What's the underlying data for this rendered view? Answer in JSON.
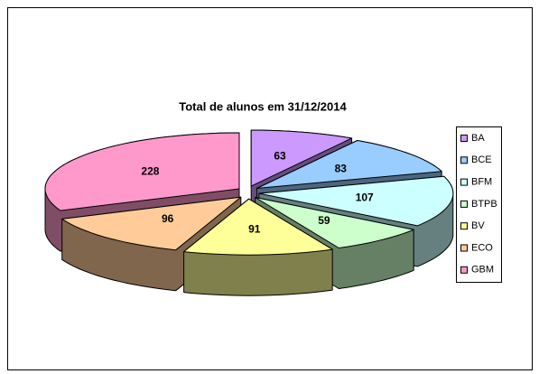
{
  "chart_data": {
    "type": "pie",
    "title": "Total de alunos em 31/12/2014",
    "categories": [
      "BA",
      "BCE",
      "BFM",
      "BTPB",
      "BV",
      "ECO",
      "GBM"
    ],
    "values": [
      63,
      83,
      107,
      59,
      91,
      96,
      228
    ],
    "colors": [
      "#cc99ff",
      "#99ccff",
      "#ccffff",
      "#ccffcc",
      "#ffff99",
      "#ffcc99",
      "#ff99cc"
    ],
    "legend": "right"
  }
}
